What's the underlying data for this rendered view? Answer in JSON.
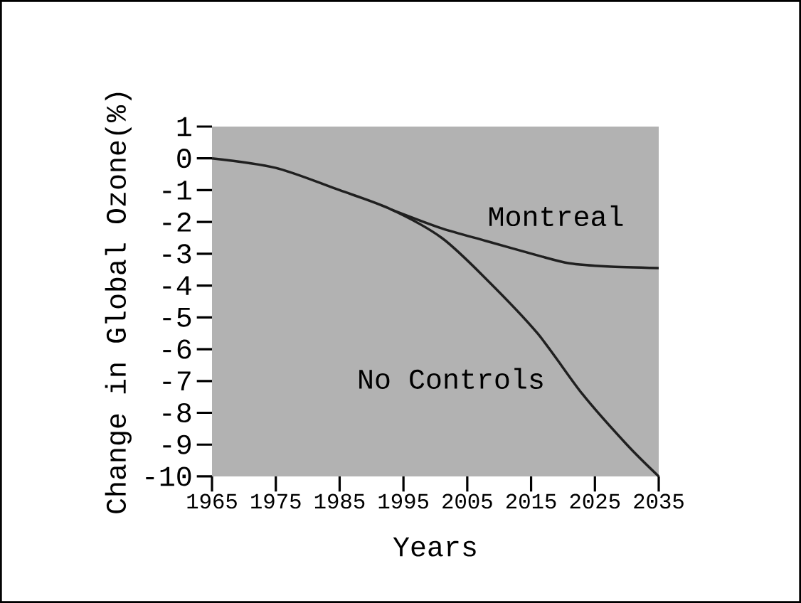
{
  "chart_data": {
    "type": "line",
    "xlabel": "Years",
    "ylabel": "Change in Global Ozone(%)",
    "xlim": [
      1965,
      2035
    ],
    "ylim": [
      -10,
      1
    ],
    "xticks": [
      1965,
      1975,
      1985,
      1995,
      2005,
      2015,
      2025,
      2035
    ],
    "yticks": [
      -10,
      -9,
      -8,
      -7,
      -6,
      -5,
      -4,
      -3,
      -2,
      -1,
      0,
      1
    ],
    "grid": false,
    "marker": "none",
    "line_style": "solid",
    "series": [
      {
        "color": "#202020",
        "x": [
          1965,
          1975,
          1985,
          1993,
          2001,
          2008,
          2016,
          2023,
          2030,
          2035
        ],
        "values": [
          0,
          -0.3,
          -1.0,
          -1.6,
          -2.5,
          -3.8,
          -5.5,
          -7.4,
          -9.0,
          -10
        ]
      },
      {
        "color": "#202020",
        "x": [
          1993,
          2001,
          2008,
          2016,
          2021,
          2027,
          2035
        ],
        "values": [
          -1.6,
          -2.2,
          -2.6,
          -3.05,
          -3.3,
          -3.4,
          -3.45
        ]
      }
    ],
    "annotations": [
      "Montreal",
      "No Controls"
    ]
  }
}
